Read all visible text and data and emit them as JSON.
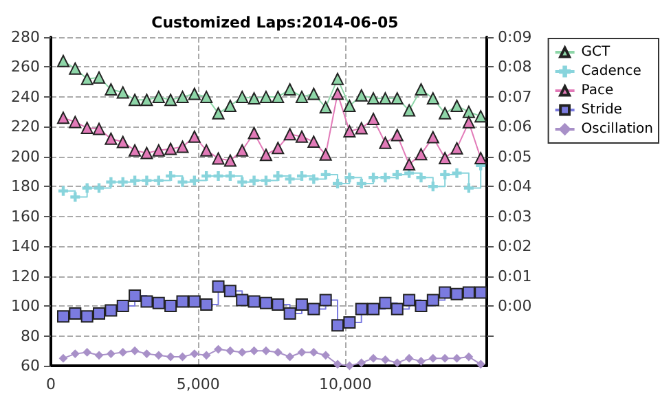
{
  "chart_data": {
    "type": "line",
    "title": "Customized Laps:2014-06-05",
    "x": [
      420,
      825,
      1230,
      1635,
      2040,
      2445,
      2850,
      3255,
      3660,
      4065,
      4470,
      4875,
      5280,
      5685,
      6090,
      6495,
      6900,
      7305,
      7710,
      8115,
      8520,
      8925,
      9330,
      9735,
      10140,
      10545,
      10950,
      11355,
      11760,
      12165,
      12570,
      12975,
      13380,
      13785,
      14190,
      14595
    ],
    "series": [
      {
        "name": "GCT",
        "color": "#8ed6a8",
        "marker": "triangle",
        "values": [
          264,
          259,
          252,
          253,
          245,
          243,
          238,
          238,
          240,
          238,
          240,
          242,
          240,
          229,
          234,
          240,
          239,
          240,
          240,
          245,
          240,
          242,
          233,
          252,
          234,
          241,
          239,
          239,
          239,
          231,
          245,
          239,
          229,
          234,
          230,
          227
        ]
      },
      {
        "name": "Cadence",
        "type": "step",
        "color": "#88d4dc",
        "marker": "cross",
        "values": [
          177,
          173,
          179,
          179,
          183,
          183,
          184,
          184,
          184,
          187,
          183,
          184,
          187,
          187,
          187,
          183,
          184,
          184,
          187,
          185,
          187,
          185,
          188,
          182,
          186,
          182,
          186,
          186,
          188,
          189,
          186,
          180,
          188,
          189,
          179,
          194
        ]
      },
      {
        "name": "Pace",
        "axis": "y2",
        "color": "#e27ab8",
        "marker": "triangle",
        "values": [
          6.3,
          6.16,
          5.96,
          5.93,
          5.6,
          5.49,
          5.21,
          5.12,
          5.21,
          5.26,
          5.33,
          5.67,
          5.21,
          4.94,
          4.87,
          5.21,
          5.79,
          5.06,
          5.29,
          5.75,
          5.67,
          5.5,
          5.07,
          7.11,
          5.85,
          5.95,
          6.26,
          5.46,
          5.72,
          4.74,
          5.08,
          5.65,
          4.95,
          5.28,
          6.15,
          4.95
        ]
      },
      {
        "name": "Stride",
        "type": "step",
        "color": "#7b7be0",
        "marker": "square",
        "values": [
          93,
          95,
          93,
          95,
          97,
          100,
          107,
          103,
          102,
          100,
          103,
          103,
          101,
          113,
          110,
          104,
          103,
          102,
          101,
          95,
          101,
          98,
          104,
          87,
          89,
          98,
          98,
          102,
          98,
          104,
          100,
          104,
          109,
          108,
          109,
          109
        ]
      },
      {
        "name": "Oscillation",
        "color": "#a890c8",
        "marker": "diamond",
        "values": [
          65,
          68,
          69,
          67,
          68,
          69,
          70,
          68,
          67,
          66,
          66,
          68,
          67,
          71,
          70,
          69,
          70,
          70,
          69,
          66,
          69,
          69,
          67,
          61,
          60,
          62,
          65,
          64,
          62,
          65,
          63,
          65,
          65,
          65,
          66,
          61
        ]
      }
    ],
    "xlim": [
      0,
      14800
    ],
    "xticks": [
      0,
      {
        "value": 5000,
        "label": "5,000"
      },
      {
        "value": 10000,
        "label": "10,000"
      }
    ],
    "ylim": [
      60,
      280
    ],
    "yticks": [
      60,
      80,
      100,
      120,
      140,
      160,
      180,
      200,
      220,
      240,
      260,
      280
    ],
    "y2lim": [
      -2,
      9
    ],
    "y2ticks": [
      {
        "value": -1,
        "label": null
      },
      {
        "value": 0,
        "label": "0:00"
      },
      {
        "value": 1,
        "label": "0:01"
      },
      {
        "value": 2,
        "label": "0:02"
      },
      {
        "value": 3,
        "label": "0:03"
      },
      {
        "value": 4,
        "label": "0:04"
      },
      {
        "value": 5,
        "label": "0:05"
      },
      {
        "value": 6,
        "label": "0:06"
      },
      {
        "value": 7,
        "label": "0:07"
      },
      {
        "value": 8,
        "label": "0:08"
      },
      {
        "value": 9,
        "label": "0:09"
      }
    ],
    "grid": true,
    "legend": "right"
  }
}
